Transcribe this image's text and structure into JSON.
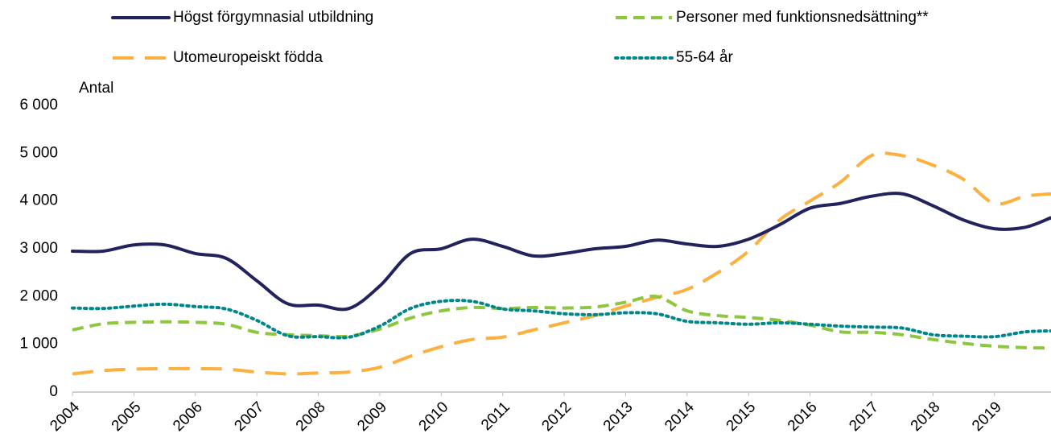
{
  "chart_data": {
    "type": "line",
    "y_label": "Antal",
    "x": [
      2004,
      2004.5,
      2005,
      2005.5,
      2006,
      2006.5,
      2007,
      2007.5,
      2008,
      2008.5,
      2009,
      2009.5,
      2010,
      2010.5,
      2011,
      2011.5,
      2012,
      2012.5,
      2013,
      2013.5,
      2014,
      2014.5,
      2015,
      2015.5,
      2016,
      2016.5,
      2017,
      2017.5,
      2018,
      2018.5,
      2019,
      2019.5,
      2019.92
    ],
    "xlim": [
      2004,
      2019.92
    ],
    "xticks": [
      2004,
      2005,
      2006,
      2007,
      2008,
      2009,
      2010,
      2011,
      2012,
      2013,
      2014,
      2015,
      2016,
      2017,
      2018,
      2019
    ],
    "ylim": [
      0,
      6000
    ],
    "yticks": [
      {
        "value": 0,
        "label": "0"
      },
      {
        "value": 1000,
        "label": "1 000"
      },
      {
        "value": 2000,
        "label": "2 000"
      },
      {
        "value": 3000,
        "label": "3 000"
      },
      {
        "value": 4000,
        "label": "4 000"
      },
      {
        "value": 5000,
        "label": "5 000"
      },
      {
        "value": 6000,
        "label": "6 000"
      }
    ],
    "grid": false,
    "series": [
      {
        "name": "Högst förgymnasial utbildning",
        "color": "#22225c",
        "dash": "solid",
        "values": [
          2950,
          2950,
          3080,
          3080,
          2900,
          2800,
          2330,
          1850,
          1820,
          1750,
          2220,
          2900,
          3000,
          3200,
          3050,
          2850,
          2900,
          3000,
          3050,
          3180,
          3100,
          3050,
          3200,
          3500,
          3850,
          3950,
          4100,
          4150,
          3900,
          3600,
          3420,
          3450,
          3650
        ]
      },
      {
        "name": "Personer med funktionsnedsättning**",
        "color": "#8dc63f",
        "dash": "dashed",
        "values": [
          1300,
          1430,
          1460,
          1470,
          1460,
          1420,
          1250,
          1200,
          1180,
          1170,
          1320,
          1550,
          1700,
          1770,
          1750,
          1770,
          1760,
          1780,
          1880,
          2000,
          1700,
          1600,
          1560,
          1500,
          1400,
          1260,
          1250,
          1200,
          1100,
          1020,
          960,
          930,
          920
        ]
      },
      {
        "name": "Utomeuropeiskt födda",
        "color": "#fbb040",
        "dash": "longdash",
        "values": [
          380,
          450,
          480,
          490,
          490,
          480,
          420,
          380,
          400,
          420,
          520,
          750,
          950,
          1100,
          1150,
          1300,
          1450,
          1600,
          1800,
          1980,
          2150,
          2500,
          2950,
          3600,
          4000,
          4400,
          4950,
          4950,
          4750,
          4450,
          3950,
          4100,
          4150
        ]
      },
      {
        "name": "55-64 år",
        "color": "#00868b",
        "dash": "dotted",
        "values": [
          1760,
          1750,
          1800,
          1840,
          1790,
          1740,
          1500,
          1180,
          1160,
          1150,
          1380,
          1750,
          1900,
          1900,
          1740,
          1700,
          1640,
          1620,
          1660,
          1640,
          1480,
          1450,
          1420,
          1450,
          1420,
          1380,
          1360,
          1340,
          1200,
          1170,
          1160,
          1260,
          1280
        ]
      }
    ]
  }
}
